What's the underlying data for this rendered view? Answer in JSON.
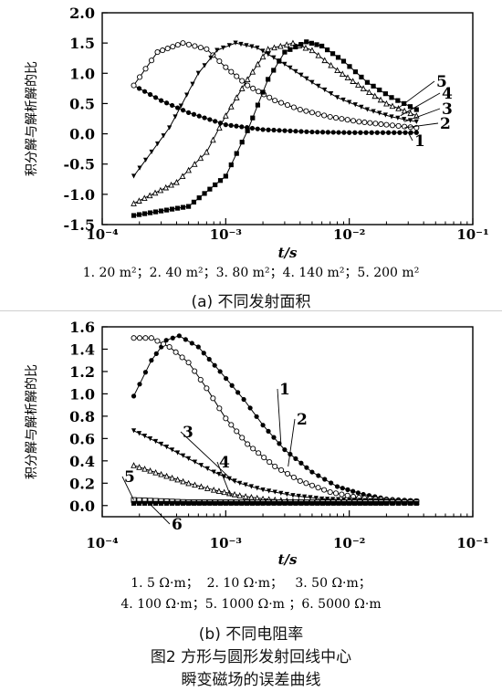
{
  "figure": {
    "caption_line1": "图2 方形与圆形发射回线中心",
    "caption_line2": "瞬变磁场的误差曲线"
  },
  "chart_data": [
    {
      "type": "line",
      "subtitle": "(a) 不同发射面积",
      "ylabel": "积分解与解析解的比",
      "xlabel": "t/s",
      "xscale": "log",
      "xlim": [
        0.0001,
        0.1
      ],
      "ylim": [
        -1.5,
        2.0
      ],
      "x_ticks": [
        0.0001,
        0.001,
        0.01,
        0.1
      ],
      "x_tick_labels": [
        "10⁻⁴",
        "10⁻³",
        "10⁻²",
        "10⁻¹"
      ],
      "y_ticks": [
        -1.5,
        -1.0,
        -0.5,
        0.0,
        0.5,
        1.0,
        1.5,
        2.0
      ],
      "y_tick_labels": [
        "-1.5",
        "-1.0",
        "-0.5",
        "0.0",
        "0.5",
        "1.0",
        "1.5",
        "2.0"
      ],
      "legend_text": "1. 20 m²；2. 40 m²；3. 80 m²；4. 140 m²；5. 200 m²",
      "series": [
        {
          "name": "1",
          "marker": "filled-circle",
          "x": [
            0.00018,
            0.0003,
            0.0005,
            0.001,
            0.002,
            0.005,
            0.01,
            0.035
          ],
          "y": [
            0.8,
            0.55,
            0.35,
            0.15,
            0.07,
            0.03,
            0.02,
            0.02
          ]
        },
        {
          "name": "2",
          "marker": "open-circle",
          "x": [
            0.00018,
            0.00028,
            0.00045,
            0.0007,
            0.001,
            0.0015,
            0.0025,
            0.004,
            0.007,
            0.012,
            0.02,
            0.035
          ],
          "y": [
            0.8,
            1.35,
            1.5,
            1.4,
            1.1,
            0.8,
            0.55,
            0.4,
            0.28,
            0.2,
            0.15,
            0.1
          ]
        },
        {
          "name": "3",
          "marker": "filled-triangle-down",
          "x": [
            0.00018,
            0.00035,
            0.0006,
            0.00085,
            0.0012,
            0.0018,
            0.003,
            0.005,
            0.008,
            0.014,
            0.022,
            0.035
          ],
          "y": [
            -0.7,
            0.1,
            1.0,
            1.38,
            1.5,
            1.42,
            1.15,
            0.85,
            0.6,
            0.4,
            0.28,
            0.2
          ]
        },
        {
          "name": "4",
          "marker": "open-triangle",
          "x": [
            0.00018,
            0.0004,
            0.0007,
            0.001,
            0.0015,
            0.0022,
            0.0035,
            0.005,
            0.008,
            0.013,
            0.02,
            0.035
          ],
          "y": [
            -1.15,
            -0.8,
            -0.3,
            0.3,
            0.9,
            1.4,
            1.5,
            1.38,
            1.05,
            0.75,
            0.5,
            0.3
          ]
        },
        {
          "name": "5",
          "marker": "filled-square",
          "x": [
            0.00018,
            0.0005,
            0.001,
            0.0015,
            0.0022,
            0.003,
            0.0045,
            0.006,
            0.009,
            0.014,
            0.022,
            0.035
          ],
          "y": [
            -1.35,
            -1.2,
            -0.7,
            0.05,
            0.9,
            1.35,
            1.52,
            1.45,
            1.2,
            0.85,
            0.6,
            0.4
          ]
        }
      ]
    },
    {
      "type": "line",
      "subtitle": "(b) 不同电阻率",
      "ylabel": "积分解与解析解的比",
      "xlabel": "t/s",
      "xscale": "log",
      "xlim": [
        0.0001,
        0.1
      ],
      "ylim": [
        -0.1,
        1.6
      ],
      "x_ticks": [
        0.0001,
        0.001,
        0.01,
        0.1
      ],
      "x_tick_labels": [
        "10⁻⁴",
        "10⁻³",
        "10⁻²",
        "10⁻¹"
      ],
      "y_ticks": [
        0.0,
        0.2,
        0.4,
        0.6,
        0.8,
        1.0,
        1.2,
        1.4,
        1.6
      ],
      "y_tick_labels": [
        "0.0",
        "0.2",
        "0.4",
        "0.6",
        "0.8",
        "1.0",
        "1.2",
        "1.4",
        "1.6"
      ],
      "legend_line1": "1. 5 Ω·m；  2. 10 Ω·m；   3. 50 Ω·m；",
      "legend_line2": "4. 100 Ω·m；5. 1000 Ω·m ；6. 5000 Ω·m",
      "series": [
        {
          "name": "1",
          "marker": "filled-circle",
          "x": [
            0.00018,
            0.00025,
            0.00033,
            0.00042,
            0.0006,
            0.0009,
            0.0014,
            0.002,
            0.003,
            0.005,
            0.008,
            0.013,
            0.02,
            0.035
          ],
          "y": [
            0.98,
            1.3,
            1.48,
            1.52,
            1.42,
            1.2,
            0.95,
            0.72,
            0.5,
            0.3,
            0.17,
            0.1,
            0.06,
            0.04
          ]
        },
        {
          "name": "2",
          "marker": "open-circle",
          "x": [
            0.00018,
            0.00025,
            0.00035,
            0.0005,
            0.0007,
            0.001,
            0.0015,
            0.0025,
            0.004,
            0.007,
            0.012,
            0.02,
            0.035
          ],
          "y": [
            1.5,
            1.5,
            1.42,
            1.28,
            1.05,
            0.78,
            0.55,
            0.35,
            0.22,
            0.12,
            0.07,
            0.05,
            0.04
          ]
        },
        {
          "name": "3",
          "marker": "filled-triangle-down",
          "x": [
            0.00018,
            0.0003,
            0.0005,
            0.0008,
            0.0013,
            0.002,
            0.0035,
            0.006,
            0.01,
            0.02,
            0.035
          ],
          "y": [
            0.67,
            0.55,
            0.42,
            0.3,
            0.2,
            0.14,
            0.09,
            0.06,
            0.05,
            0.04,
            0.04
          ]
        },
        {
          "name": "4",
          "marker": "open-triangle",
          "x": [
            0.00018,
            0.0003,
            0.0005,
            0.0008,
            0.0013,
            0.002,
            0.0035,
            0.006,
            0.01,
            0.02,
            0.035
          ],
          "y": [
            0.36,
            0.28,
            0.2,
            0.14,
            0.09,
            0.06,
            0.04,
            0.03,
            0.03,
            0.03,
            0.03
          ]
        },
        {
          "name": "5",
          "marker": "open-square",
          "x": [
            0.00018,
            0.0003,
            0.0005,
            0.001,
            0.002,
            0.005,
            0.01,
            0.02,
            0.035
          ],
          "y": [
            0.05,
            0.04,
            0.03,
            0.03,
            0.03,
            0.03,
            0.03,
            0.03,
            0.03
          ]
        },
        {
          "name": "6",
          "marker": "filled-square",
          "x": [
            0.00018,
            0.0003,
            0.0005,
            0.001,
            0.002,
            0.005,
            0.01,
            0.02,
            0.035
          ],
          "y": [
            0.02,
            0.02,
            0.02,
            0.02,
            0.02,
            0.02,
            0.02,
            0.02,
            0.02
          ]
        }
      ]
    }
  ]
}
